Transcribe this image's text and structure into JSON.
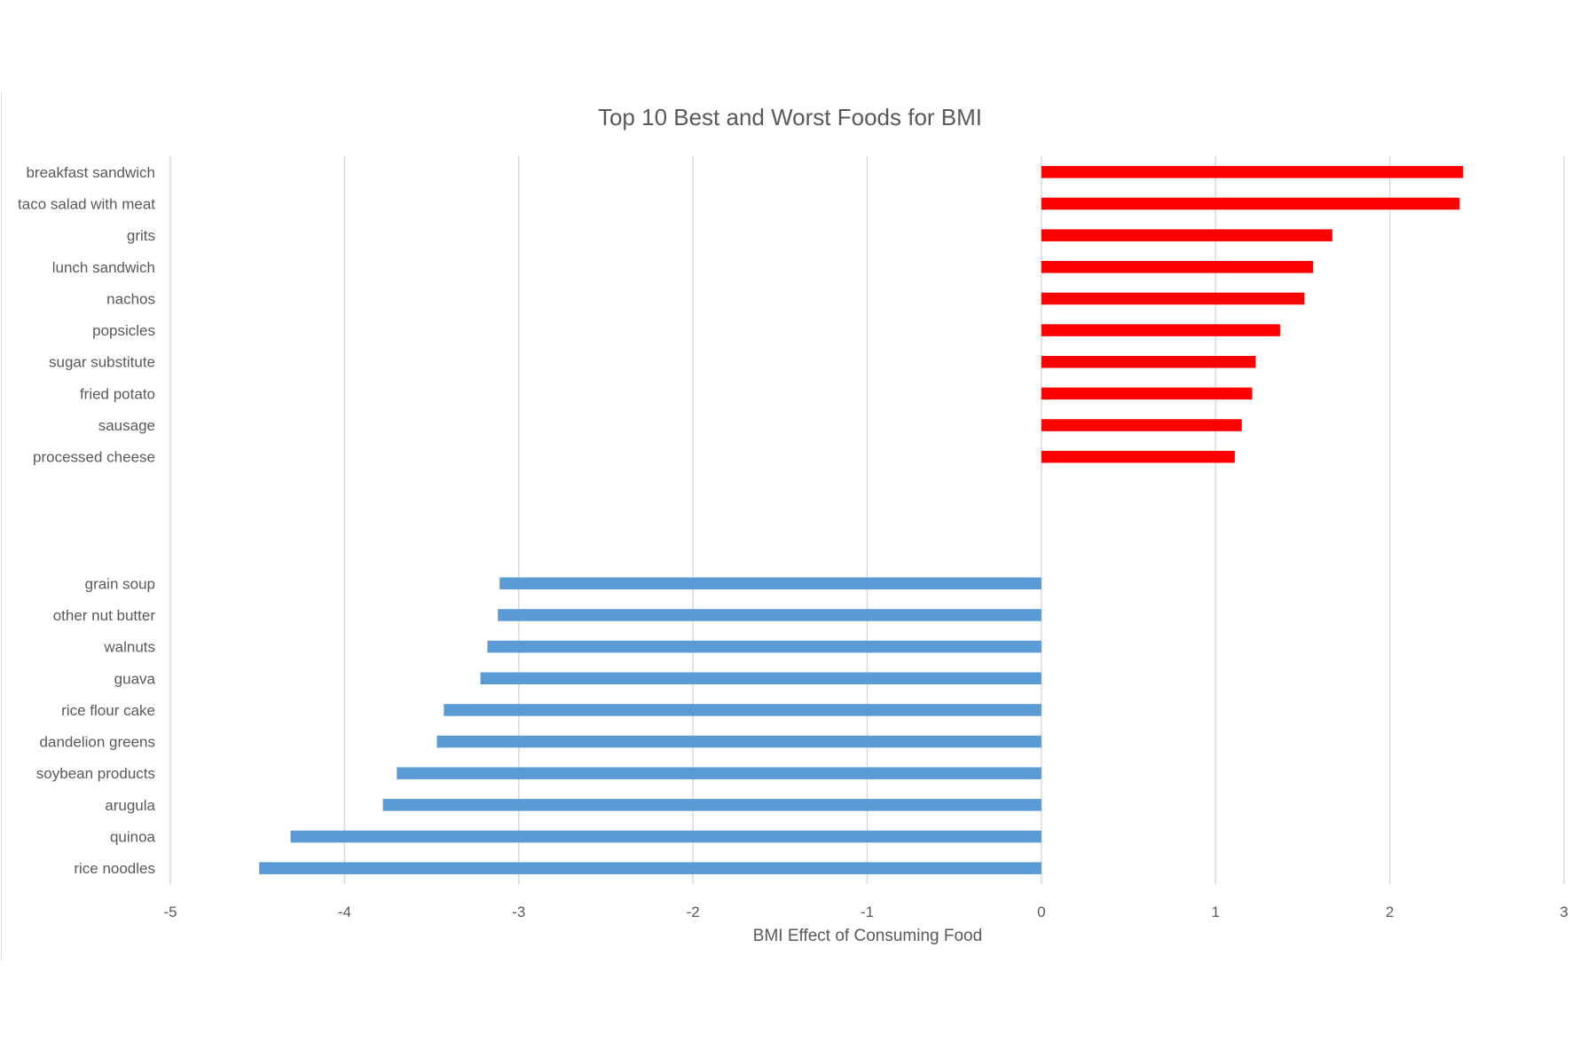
{
  "chart_data": {
    "type": "bar",
    "orientation": "horizontal",
    "title": "Top 10 Best and Worst Foods for BMI",
    "xlabel": "BMI Effect of Consuming Food",
    "ylabel": "",
    "xlim": [
      -5,
      3
    ],
    "xticks": [
      -5,
      -4,
      -3,
      -2,
      -1,
      0,
      1,
      2,
      3
    ],
    "grid": true,
    "legend": "none",
    "colors": {
      "worst": "#ff0000",
      "best": "#5b9bd5",
      "grid": "#d9d9d9",
      "text": "#595959"
    },
    "categories": [
      "breakfast sandwich",
      "taco salad with meat",
      "grits",
      "lunch sandwich",
      "nachos",
      "popsicles",
      "sugar substitute",
      "fried potato",
      "sausage",
      "processed cheese",
      "",
      "",
      "",
      "grain soup",
      "other nut butter",
      "walnuts",
      "guava",
      "rice flour cake",
      "dandelion greens",
      "soybean products",
      "arugula",
      "quinoa",
      "rice noodles"
    ],
    "series": [
      {
        "values": [
          2.42,
          2.4,
          1.67,
          1.56,
          1.51,
          1.37,
          1.23,
          1.21,
          1.15,
          1.11,
          null,
          null,
          null,
          null,
          null,
          null,
          null,
          null,
          null,
          null,
          null,
          null,
          null
        ]
      },
      {
        "values": [
          null,
          null,
          null,
          null,
          null,
          null,
          null,
          null,
          null,
          null,
          null,
          null,
          null,
          -3.11,
          -3.12,
          -3.18,
          -3.22,
          -3.43,
          -3.47,
          -3.7,
          -3.78,
          -4.31,
          -4.49
        ]
      }
    ]
  }
}
